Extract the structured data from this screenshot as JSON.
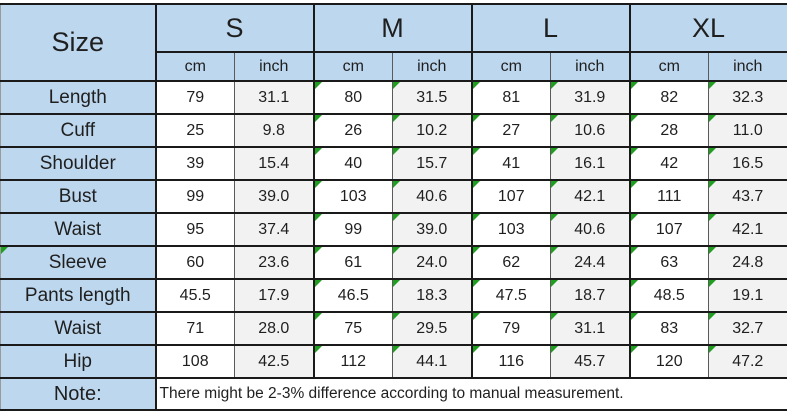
{
  "table": {
    "corner_label": "Size",
    "sizes": [
      "S",
      "M",
      "L",
      "XL"
    ],
    "unit_headers": [
      "cm",
      "inch"
    ],
    "rows": [
      {
        "label": "Length",
        "values": [
          [
            "79",
            "31.1"
          ],
          [
            "80",
            "31.5"
          ],
          [
            "81",
            "31.9"
          ],
          [
            "82",
            "32.3"
          ]
        ]
      },
      {
        "label": "Cuff",
        "values": [
          [
            "25",
            "9.8"
          ],
          [
            "26",
            "10.2"
          ],
          [
            "27",
            "10.6"
          ],
          [
            "28",
            "11.0"
          ]
        ]
      },
      {
        "label": "Shoulder",
        "values": [
          [
            "39",
            "15.4"
          ],
          [
            "40",
            "15.7"
          ],
          [
            "41",
            "16.1"
          ],
          [
            "42",
            "16.5"
          ]
        ]
      },
      {
        "label": "Bust",
        "values": [
          [
            "99",
            "39.0"
          ],
          [
            "103",
            "40.6"
          ],
          [
            "107",
            "42.1"
          ],
          [
            "111",
            "43.7"
          ]
        ]
      },
      {
        "label": "Waist",
        "values": [
          [
            "95",
            "37.4"
          ],
          [
            "99",
            "39.0"
          ],
          [
            "103",
            "40.6"
          ],
          [
            "107",
            "42.1"
          ]
        ]
      },
      {
        "label": "Sleeve",
        "label_flag": true,
        "values": [
          [
            "60",
            "23.6"
          ],
          [
            "61",
            "24.0"
          ],
          [
            "62",
            "24.4"
          ],
          [
            "63",
            "24.8"
          ]
        ]
      },
      {
        "label": "Pants length",
        "values": [
          [
            "45.5",
            "17.9"
          ],
          [
            "46.5",
            "18.3"
          ],
          [
            "47.5",
            "18.7"
          ],
          [
            "48.5",
            "19.1"
          ]
        ]
      },
      {
        "label": "Waist",
        "values": [
          [
            "71",
            "28.0"
          ],
          [
            "75",
            "29.5"
          ],
          [
            "79",
            "31.1"
          ],
          [
            "83",
            "32.7"
          ]
        ]
      },
      {
        "label": "Hip",
        "values": [
          [
            "108",
            "42.5"
          ],
          [
            "112",
            "44.1"
          ],
          [
            "116",
            "45.7"
          ],
          [
            "120",
            "47.2"
          ]
        ]
      }
    ],
    "flagged_size_columns": [
      1,
      2,
      3
    ],
    "note_label": "Note:",
    "note_text": "There might be 2-3% difference according to manual measurement."
  },
  "colors": {
    "header_bg": "#BDD7EE",
    "inch_bg": "#F2F2F2",
    "cm_bg": "#FFFFFF",
    "border_dark": "#1A1A1A",
    "border_thin": "#5A5A5A",
    "text": "#1F1F1F",
    "cell_flag_green": "#1F9E1F"
  }
}
